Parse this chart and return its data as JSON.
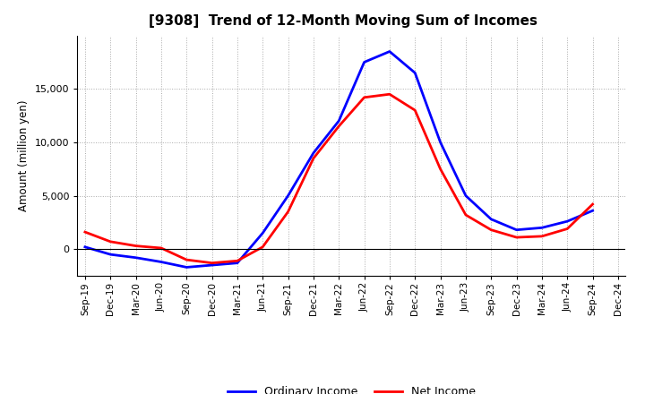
{
  "title": "[9308]  Trend of 12-Month Moving Sum of Incomes",
  "ylabel": "Amount (million yen)",
  "x_labels": [
    "Sep-19",
    "Dec-19",
    "Mar-20",
    "Jun-20",
    "Sep-20",
    "Dec-20",
    "Mar-21",
    "Jun-21",
    "Sep-21",
    "Dec-21",
    "Mar-22",
    "Jun-22",
    "Sep-22",
    "Dec-22",
    "Mar-23",
    "Jun-23",
    "Sep-23",
    "Dec-23",
    "Mar-24",
    "Jun-24",
    "Sep-24",
    "Dec-24"
  ],
  "ordinary_income": [
    200,
    -500,
    -800,
    -1200,
    -1700,
    -1500,
    -1300,
    1500,
    5000,
    9000,
    12000,
    17500,
    18500,
    16500,
    10000,
    5000,
    2800,
    1800,
    2000,
    2600,
    3600,
    null
  ],
  "net_income": [
    1600,
    700,
    300,
    100,
    -1000,
    -1300,
    -1100,
    200,
    3500,
    8500,
    11500,
    14200,
    14500,
    13000,
    7500,
    3200,
    1800,
    1100,
    1200,
    1900,
    4200,
    null
  ],
  "ordinary_color": "#0000ff",
  "net_color": "#ff0000",
  "line_width": 2.0,
  "ylim": [
    -2500,
    20000
  ],
  "background_color": "#ffffff",
  "grid_color": "#aaaaaa",
  "title_fontsize": 11,
  "legend_labels": [
    "Ordinary Income",
    "Net Income"
  ]
}
